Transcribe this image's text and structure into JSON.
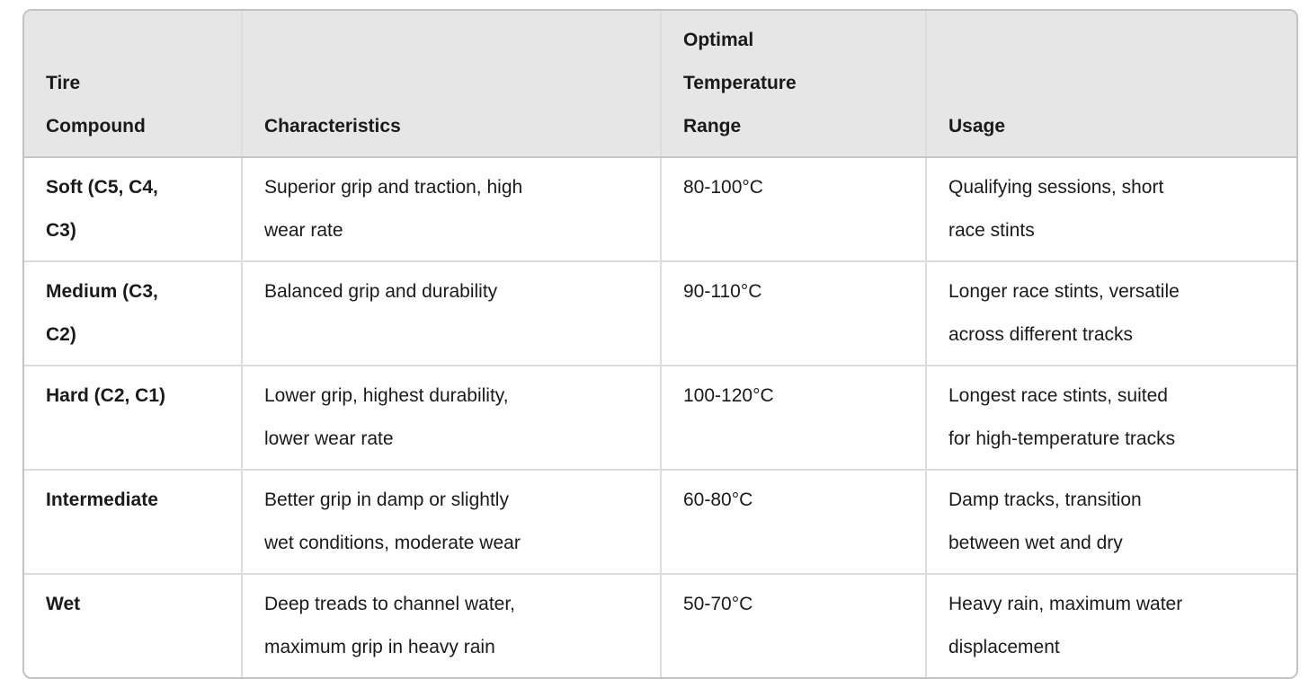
{
  "table": {
    "columns": [
      "Tire\nCompound",
      "Characteristics",
      "Optimal\nTemperature\nRange",
      "Usage"
    ],
    "rows": [
      [
        "Soft (C5, C4,\nC3)",
        "Superior grip and traction, high\nwear rate",
        "80-100°C",
        "Qualifying sessions, short\nrace stints"
      ],
      [
        "Medium (C3,\nC2)",
        "Balanced grip and durability",
        "90-110°C",
        "Longer race stints, versatile\nacross different tracks"
      ],
      [
        "Hard (C2, C1)",
        "Lower grip, highest durability,\nlower wear rate",
        "100-120°C",
        "Longest race stints, suited\nfor high-temperature tracks"
      ],
      [
        "Intermediate",
        "Better grip in damp or slightly\nwet conditions, moderate wear",
        "60-80°C",
        "Damp tracks, transition\nbetween wet and dry"
      ],
      [
        "Wet",
        "Deep treads to channel water,\nmaximum grip in heavy rain",
        "50-70°C",
        "Heavy rain, maximum water\ndisplacement"
      ]
    ]
  },
  "colors": {
    "header_background": "#e6e6e6",
    "outer_border": "#c2c2c2",
    "inner_divider": "#dcdcdc",
    "header_bottom_border": "#c5c5c5",
    "text": "#1a1a1a",
    "body_background": "#ffffff"
  }
}
